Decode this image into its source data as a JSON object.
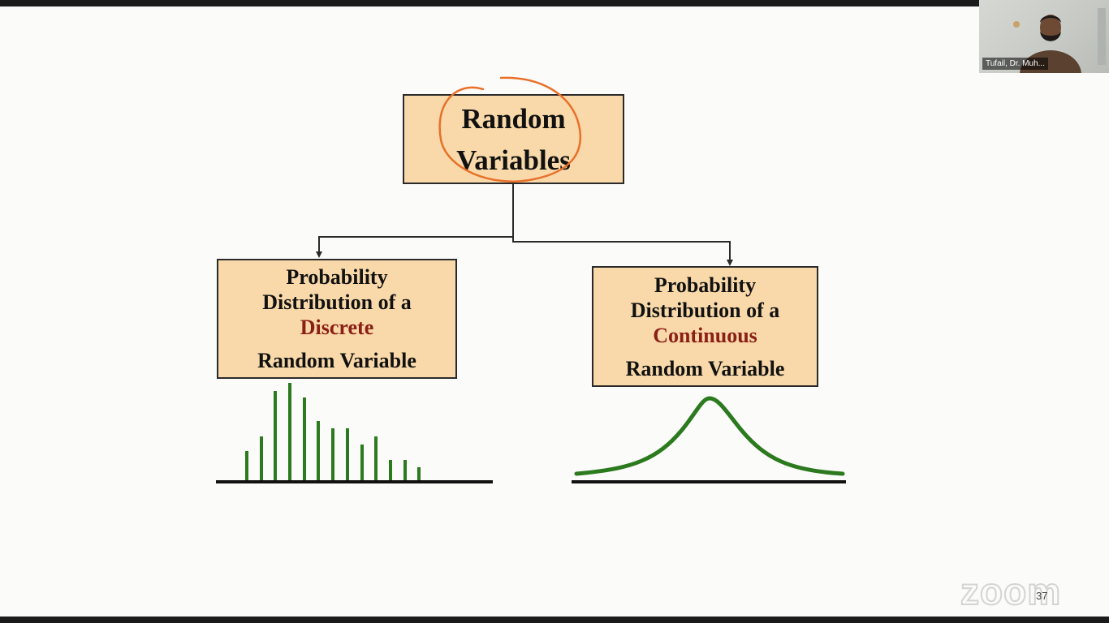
{
  "window": {
    "brand": "zoom"
  },
  "participant": {
    "name": "Tufail, Dr. Muh..."
  },
  "slide": {
    "number": "37",
    "root": {
      "line1": "Random",
      "line2": "Variables"
    },
    "discrete": {
      "line1": "Probability",
      "line2": "Distribution of a",
      "keyword": "Discrete",
      "line4": "Random Variable"
    },
    "continuous": {
      "line1": "Probability",
      "line2": "Distribution of a",
      "keyword": "Continuous",
      "line4": "Random Variable"
    }
  },
  "colors": {
    "box_fill": "#f9d9a9",
    "keyword": "#8b1f16",
    "chart_green": "#2c7a1e",
    "annotation": "#e8702a"
  },
  "icons": [
    "presenter-video",
    "zoom-logo",
    "annotation-circle"
  ]
}
